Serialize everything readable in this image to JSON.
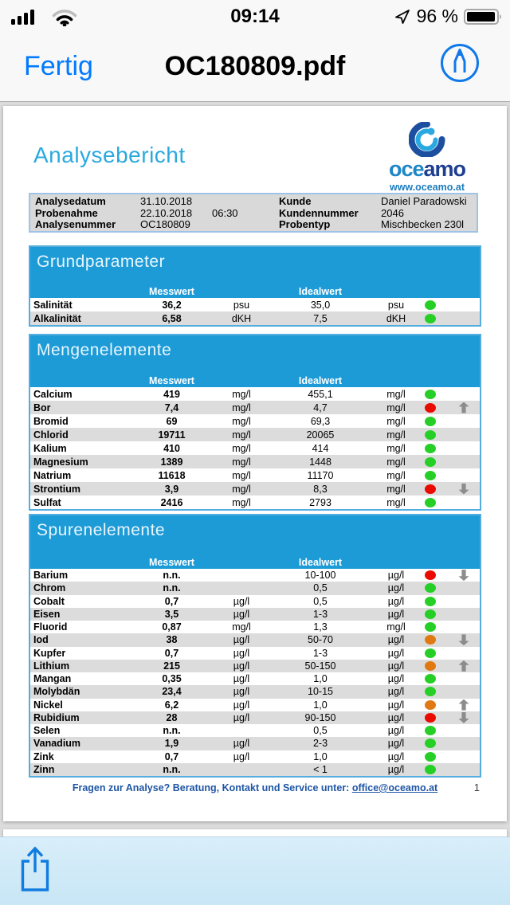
{
  "status_bar": {
    "time": "09:14",
    "battery_percent": "96 %"
  },
  "nav_bar": {
    "done_label": "Fertig",
    "title": "OC180809.pdf"
  },
  "icons": {
    "signal": "signal-bars-icon",
    "wifi": "wifi-icon",
    "location": "location-arrow-icon",
    "battery": "battery-icon",
    "markup": "markup-pen-icon",
    "share": "share-icon",
    "status_dot": "status-dot",
    "trend_up": "trend-up-icon",
    "trend_down": "trend-down-icon"
  },
  "colors": {
    "ios_blue": "#007AFF",
    "section_blue": "#1D9BD7",
    "section_border": "#55ADDF",
    "doc_title_blue": "#2AA9E0",
    "footer_blue": "#1F55A4",
    "alt_row": "#DCDCDC",
    "dot_green": "#26CF26",
    "dot_red": "#EA0B00",
    "dot_orange": "#E07912",
    "arrow_gray": "#8C8C8C"
  },
  "document": {
    "title": "Analysebericht",
    "logo": {
      "brand_light": "oce",
      "brand_dark": "amo",
      "url": "www.oceamo.at"
    },
    "info": {
      "left": [
        {
          "label": "Analysedatum",
          "value": "31.10.2018",
          "extra": ""
        },
        {
          "label": "Probenahme",
          "value": "22.10.2018",
          "extra": "06:30"
        },
        {
          "label": "Analysenummer",
          "value": "OC180809",
          "extra": ""
        }
      ],
      "right": [
        {
          "label": "Kunde",
          "value": "Daniel Paradowski"
        },
        {
          "label": "Kundennummer",
          "value": "2046"
        },
        {
          "label": "Probentyp",
          "value": "Mischbecken 230l"
        }
      ]
    },
    "sections": [
      {
        "title": "Grundparameter",
        "col_measured": "Messwert",
        "col_ideal": "Idealwert",
        "rows": [
          {
            "name": "Salinität",
            "measured": "36,2",
            "measured_unit": "psu",
            "ideal": "35,0",
            "ideal_unit": "psu",
            "status": "green",
            "trend": ""
          },
          {
            "name": "Alkalinität",
            "measured": "6,58",
            "measured_unit": "dKH",
            "ideal": "7,5",
            "ideal_unit": "dKH",
            "status": "green",
            "trend": ""
          }
        ]
      },
      {
        "title": "Mengenelemente",
        "col_measured": "Messwert",
        "col_ideal": "Idealwert",
        "rows": [
          {
            "name": "Calcium",
            "measured": "419",
            "measured_unit": "mg/l",
            "ideal": "455,1",
            "ideal_unit": "mg/l",
            "status": "green",
            "trend": ""
          },
          {
            "name": "Bor",
            "measured": "7,4",
            "measured_unit": "mg/l",
            "ideal": "4,7",
            "ideal_unit": "mg/l",
            "status": "red",
            "trend": "up"
          },
          {
            "name": "Bromid",
            "measured": "69",
            "measured_unit": "mg/l",
            "ideal": "69,3",
            "ideal_unit": "mg/l",
            "status": "green",
            "trend": ""
          },
          {
            "name": "Chlorid",
            "measured": "19711",
            "measured_unit": "mg/l",
            "ideal": "20065",
            "ideal_unit": "mg/l",
            "status": "green",
            "trend": ""
          },
          {
            "name": "Kalium",
            "measured": "410",
            "measured_unit": "mg/l",
            "ideal": "414",
            "ideal_unit": "mg/l",
            "status": "green",
            "trend": ""
          },
          {
            "name": "Magnesium",
            "measured": "1389",
            "measured_unit": "mg/l",
            "ideal": "1448",
            "ideal_unit": "mg/l",
            "status": "green",
            "trend": ""
          },
          {
            "name": "Natrium",
            "measured": "11618",
            "measured_unit": "mg/l",
            "ideal": "11170",
            "ideal_unit": "mg/l",
            "status": "green",
            "trend": ""
          },
          {
            "name": "Strontium",
            "measured": "3,9",
            "measured_unit": "mg/l",
            "ideal": "8,3",
            "ideal_unit": "mg/l",
            "status": "red",
            "trend": "down"
          },
          {
            "name": "Sulfat",
            "measured": "2416",
            "measured_unit": "mg/l",
            "ideal": "2793",
            "ideal_unit": "mg/l",
            "status": "green",
            "trend": ""
          }
        ]
      },
      {
        "title": "Spurenelemente",
        "col_measured": "Messwert",
        "col_ideal": "Idealwert",
        "rows": [
          {
            "name": "Barium",
            "measured": "n.n.",
            "measured_unit": "",
            "ideal": "10-100",
            "ideal_unit": "µg/l",
            "status": "red",
            "trend": "down"
          },
          {
            "name": "Chrom",
            "measured": "n.n.",
            "measured_unit": "",
            "ideal": "0,5",
            "ideal_unit": "µg/l",
            "status": "green",
            "trend": ""
          },
          {
            "name": "Cobalt",
            "measured": "0,7",
            "measured_unit": "µg/l",
            "ideal": "0,5",
            "ideal_unit": "µg/l",
            "status": "green",
            "trend": ""
          },
          {
            "name": "Eisen",
            "measured": "3,5",
            "measured_unit": "µg/l",
            "ideal": "1-3",
            "ideal_unit": "µg/l",
            "status": "green",
            "trend": ""
          },
          {
            "name": "Fluorid",
            "measured": "0,87",
            "measured_unit": "mg/l",
            "ideal": "1,3",
            "ideal_unit": "mg/l",
            "status": "green",
            "trend": ""
          },
          {
            "name": "Iod",
            "measured": "38",
            "measured_unit": "µg/l",
            "ideal": "50-70",
            "ideal_unit": "µg/l",
            "status": "orange",
            "trend": "down"
          },
          {
            "name": "Kupfer",
            "measured": "0,7",
            "measured_unit": "µg/l",
            "ideal": "1-3",
            "ideal_unit": "µg/l",
            "status": "green",
            "trend": ""
          },
          {
            "name": "Lithium",
            "measured": "215",
            "measured_unit": "µg/l",
            "ideal": "50-150",
            "ideal_unit": "µg/l",
            "status": "orange",
            "trend": "up"
          },
          {
            "name": "Mangan",
            "measured": "0,35",
            "measured_unit": "µg/l",
            "ideal": "1,0",
            "ideal_unit": "µg/l",
            "status": "green",
            "trend": ""
          },
          {
            "name": "Molybdän",
            "measured": "23,4",
            "measured_unit": "µg/l",
            "ideal": "10-15",
            "ideal_unit": "µg/l",
            "status": "green",
            "trend": ""
          },
          {
            "name": "Nickel",
            "measured": "6,2",
            "measured_unit": "µg/l",
            "ideal": "1,0",
            "ideal_unit": "µg/l",
            "status": "orange",
            "trend": "up"
          },
          {
            "name": "Rubidium",
            "measured": "28",
            "measured_unit": "µg/l",
            "ideal": "90-150",
            "ideal_unit": "µg/l",
            "status": "red",
            "trend": "down"
          },
          {
            "name": "Selen",
            "measured": "n.n.",
            "measured_unit": "",
            "ideal": "0,5",
            "ideal_unit": "µg/l",
            "status": "green",
            "trend": ""
          },
          {
            "name": "Vanadium",
            "measured": "1,9",
            "measured_unit": "µg/l",
            "ideal": "2-3",
            "ideal_unit": "µg/l",
            "status": "green",
            "trend": ""
          },
          {
            "name": "Zink",
            "measured": "0,7",
            "measured_unit": "µg/l",
            "ideal": "1,0",
            "ideal_unit": "µg/l",
            "status": "green",
            "trend": ""
          },
          {
            "name": "Zinn",
            "measured": "n.n.",
            "measured_unit": "",
            "ideal": "< 1",
            "ideal_unit": "µg/l",
            "status": "green",
            "trend": ""
          }
        ]
      }
    ],
    "footer": {
      "text": "Fragen zur Analyse? Beratung, Kontakt und Service unter:",
      "email": "office@oceamo.at",
      "page_number": "1"
    }
  }
}
